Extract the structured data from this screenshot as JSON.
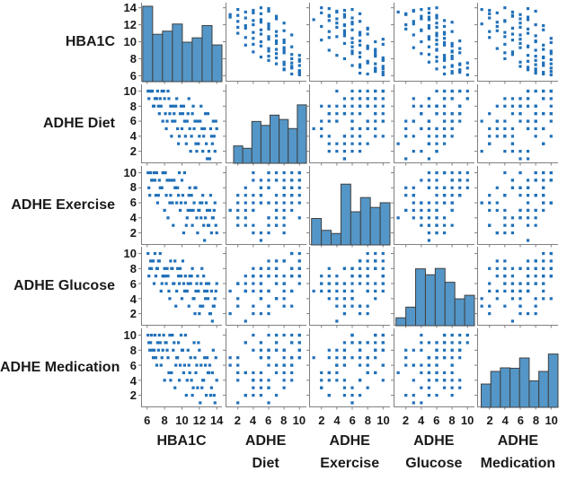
{
  "chart_data": {
    "type": "scatter",
    "subtype": "scatter-plot-matrix",
    "title": "",
    "xlabel": "",
    "ylabel": "",
    "grid": false,
    "legend": "none",
    "diagonal": "histogram",
    "variables": [
      {
        "key": "hba1c",
        "label": "HBA1C",
        "title_lines": [
          "HBA1C"
        ],
        "ticks": [
          6,
          8,
          10,
          12,
          14
        ],
        "range": [
          5.3,
          14.6
        ]
      },
      {
        "key": "diet",
        "label": "ADHE Diet",
        "title_lines": [
          "ADHE",
          "Diet"
        ],
        "ticks": [
          2,
          4,
          6,
          8,
          10
        ],
        "range": [
          0.4,
          10.9
        ]
      },
      {
        "key": "exercise",
        "label": "ADHE Exercise",
        "title_lines": [
          "ADHE",
          "Exercise"
        ],
        "ticks": [
          2,
          4,
          6,
          8,
          10
        ],
        "range": [
          0.4,
          10.9
        ]
      },
      {
        "key": "glucose",
        "label": "ADHE Glucose",
        "title_lines": [
          "ADHE",
          "Glucose"
        ],
        "ticks": [
          2,
          4,
          6,
          8,
          10
        ],
        "range": [
          0.4,
          10.9
        ]
      },
      {
        "key": "medication",
        "label": "ADHE Medication",
        "title_lines": [
          "ADHE",
          "Medication"
        ],
        "ticks": [
          2,
          4,
          6,
          8,
          10
        ],
        "range": [
          0.4,
          10.9
        ]
      }
    ],
    "histograms": {
      "hba1c": {
        "x0": 0.02,
        "bins": [
          0.955,
          0.6,
          0.64,
          0.73,
          0.5,
          0.555,
          0.71,
          0.465
        ]
      },
      "diet": {
        "x0": 0.1,
        "bins": [
          0.22,
          0.19,
          0.53,
          0.48,
          0.61,
          0.555,
          0.44,
          0.74
        ]
      },
      "exercise": {
        "x0": 0.03,
        "bins": [
          0.335,
          0.185,
          0.145,
          0.77,
          0.42,
          0.6,
          0.475,
          0.535
        ]
      },
      "glucose": {
        "x0": 0.03,
        "bins": [
          0.1,
          0.235,
          0.72,
          0.645,
          0.725,
          0.55,
          0.34,
          0.385
        ]
      },
      "medication": {
        "x0": 0.05,
        "bins": [
          0.295,
          0.455,
          0.5,
          0.495,
          0.625,
          0.335,
          0.455,
          0.675
        ]
      }
    },
    "record_fields": [
      "hba1c",
      "diet",
      "exercise",
      "glucose",
      "medication"
    ],
    "records": [
      [
        6.2,
        9,
        8,
        7,
        9
      ],
      [
        6.5,
        10,
        9,
        8,
        10
      ],
      [
        6.8,
        8,
        10,
        6,
        8
      ],
      [
        7.0,
        9,
        7,
        7,
        7
      ],
      [
        7.2,
        10,
        6,
        8,
        9
      ],
      [
        7.4,
        7,
        9,
        9,
        10
      ],
      [
        7.6,
        8,
        8,
        5,
        6
      ],
      [
        7.8,
        6,
        10,
        7,
        8
      ],
      [
        8.0,
        9,
        5,
        8,
        4
      ],
      [
        8.2,
        5,
        7,
        6,
        9
      ],
      [
        8.4,
        10,
        4,
        7,
        7
      ],
      [
        8.6,
        7,
        6,
        4,
        10
      ],
      [
        8.8,
        4,
        9,
        8,
        5
      ],
      [
        9.0,
        8,
        3,
        6,
        8
      ],
      [
        9.2,
        6,
        8,
        9,
        3
      ],
      [
        9.4,
        9,
        6,
        5,
        7
      ],
      [
        9.6,
        3,
        7,
        7,
        9
      ],
      [
        9.8,
        7,
        5,
        8,
        6
      ],
      [
        10.0,
        5,
        9,
        4,
        8
      ],
      [
        10.2,
        8,
        2,
        6,
        5
      ],
      [
        10.4,
        4,
        6,
        7,
        10
      ],
      [
        10.6,
        6,
        4,
        5,
        4
      ],
      [
        10.8,
        9,
        7,
        3,
        6
      ],
      [
        11.0,
        2,
        5,
        6,
        7
      ],
      [
        11.2,
        7,
        3,
        8,
        2
      ],
      [
        11.4,
        5,
        6,
        4,
        9
      ],
      [
        11.6,
        3,
        8,
        5,
        5
      ],
      [
        11.8,
        6,
        2,
        7,
        3
      ],
      [
        12.0,
        4,
        5,
        2,
        8
      ],
      [
        12.2,
        8,
        4,
        6,
        6
      ],
      [
        12.4,
        2,
        7,
        3,
        4
      ],
      [
        12.6,
        5,
        1,
        5,
        7
      ],
      [
        12.8,
        3,
        6,
        6,
        2
      ],
      [
        13.0,
        7,
        3,
        4,
        5
      ],
      [
        13.2,
        1,
        5,
        2,
        6
      ],
      [
        13.4,
        4,
        2,
        5,
        3
      ],
      [
        13.6,
        6,
        4,
        3,
        8
      ],
      [
        13.8,
        2,
        6,
        4,
        1
      ],
      [
        14.0,
        5,
        2,
        6,
        4
      ],
      [
        13.5,
        3,
        4,
        1,
        5
      ],
      [
        6.4,
        10,
        10,
        9,
        9
      ],
      [
        6.9,
        9,
        9,
        10,
        10
      ],
      [
        7.3,
        8,
        7,
        9,
        8
      ],
      [
        7.7,
        10,
        8,
        6,
        7
      ],
      [
        8.1,
        7,
        10,
        7,
        9
      ],
      [
        8.5,
        9,
        9,
        5,
        5
      ],
      [
        8.9,
        6,
        6,
        8,
        10
      ],
      [
        9.3,
        8,
        8,
        3,
        6
      ],
      [
        9.7,
        4,
        10,
        6,
        4
      ],
      [
        10.1,
        7,
        7,
        9,
        8
      ],
      [
        10.5,
        3,
        3,
        5,
        2
      ],
      [
        10.9,
        5,
        8,
        7,
        5
      ],
      [
        11.3,
        8,
        5,
        4,
        3
      ],
      [
        11.7,
        2,
        4,
        6,
        6
      ],
      [
        12.1,
        6,
        6,
        3,
        1
      ],
      [
        12.5,
        4,
        3,
        7,
        4
      ],
      [
        12.9,
        1,
        5,
        5,
        7
      ],
      [
        13.3,
        5,
        7,
        2,
        2
      ],
      [
        6.6,
        10,
        9,
        9,
        8
      ],
      [
        7.1,
        9,
        10,
        8,
        6
      ],
      [
        6.3,
        10,
        7,
        8,
        8
      ],
      [
        6.7,
        8,
        9,
        9,
        7
      ],
      [
        7.5,
        9,
        8,
        10,
        9
      ],
      [
        7.9,
        10,
        10,
        7,
        10
      ],
      [
        8.3,
        6,
        9,
        8,
        8
      ],
      [
        8.7,
        8,
        7,
        9,
        4
      ],
      [
        9.1,
        7,
        9,
        6,
        9
      ],
      [
        9.5,
        5,
        8,
        8,
        7
      ],
      [
        9.9,
        8,
        6,
        7,
        10
      ],
      [
        10.3,
        6,
        10,
        5,
        6
      ],
      [
        10.7,
        7,
        5,
        6,
        8
      ],
      [
        11.1,
        4,
        7,
        7,
        4
      ],
      [
        11.5,
        6,
        8,
        2,
        7
      ],
      [
        11.9,
        3,
        5,
        5,
        9
      ],
      [
        12.3,
        5,
        6,
        8,
        3
      ],
      [
        12.7,
        7,
        4,
        4,
        6
      ],
      [
        13.1,
        2,
        3,
        6,
        5
      ],
      [
        13.7,
        4,
        5,
        3,
        2
      ],
      [
        13.9,
        6,
        3,
        5,
        7
      ],
      [
        6.1,
        10,
        10,
        10,
        10
      ]
    ],
    "colors": {
      "marker": "#2070b8",
      "hist_fill": "#5496c7",
      "hist_edge": "#404040",
      "axis": "#808080",
      "text": "#1a1a1a",
      "background": "#ffffff"
    }
  }
}
